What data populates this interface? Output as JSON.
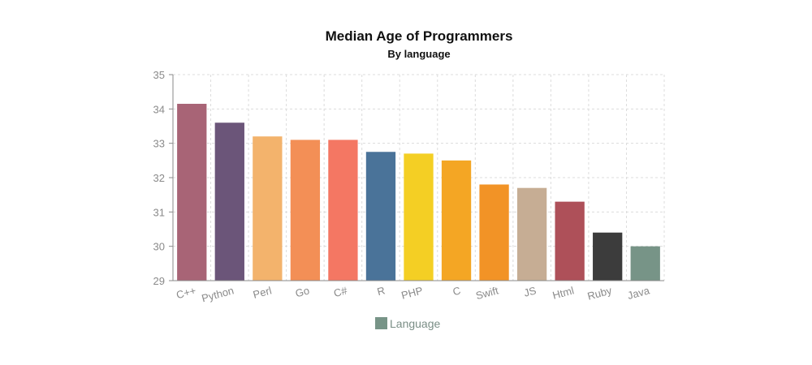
{
  "chart_data": {
    "type": "bar",
    "title": "Median Age of Programmers",
    "subtitle": "By language",
    "xlabel": "",
    "ylabel": "",
    "ylim": [
      29,
      35
    ],
    "yticks": [
      29,
      30,
      31,
      32,
      33,
      34,
      35
    ],
    "grid": true,
    "legend_position": "bottom",
    "categories": [
      "C++",
      "Python",
      "Perl",
      "Go",
      "C#",
      "R",
      "PHP",
      "C",
      "Swift",
      "JS",
      "Html",
      "Ruby",
      "Java"
    ],
    "series": [
      {
        "name": "Language",
        "values": [
          34.15,
          33.6,
          33.2,
          33.1,
          33.1,
          32.75,
          32.7,
          32.5,
          31.8,
          31.7,
          31.3,
          30.4,
          30.0
        ],
        "colors": [
          "#a86476",
          "#6b5579",
          "#f3b36c",
          "#f38f56",
          "#f47763",
          "#4a7399",
          "#f4cf24",
          "#f4a624",
          "#f29326",
          "#c6ad94",
          "#ae5059",
          "#3c3c3c",
          "#779487"
        ]
      }
    ],
    "legend_swatch_color": "#779487"
  }
}
